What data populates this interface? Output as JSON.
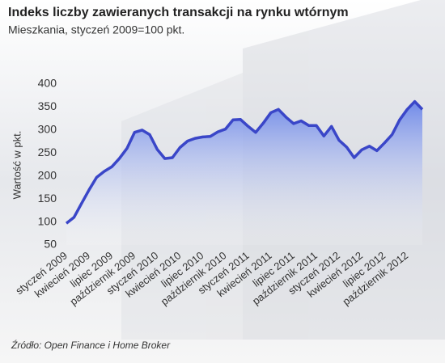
{
  "chart_data": {
    "type": "area-line",
    "title": "Indeks liczby zawieranych transakcji na rynku wtórnym",
    "subtitle": "Mieszkania, styczeń 2009=100 pkt.",
    "y_label": "Wartość w pkt.",
    "source": "Źródło: Open Finance i Home Broker",
    "categories": [
      "styczeń 2009",
      null,
      null,
      "kwiecień 2009",
      null,
      null,
      "lipiec 2009",
      null,
      null,
      "październik 2009",
      null,
      null,
      "styczeń 2010",
      null,
      null,
      "kwiecień 2010",
      null,
      null,
      "lipiec 2010",
      null,
      null,
      "październik 2010",
      null,
      null,
      "styczeń 2011",
      null,
      null,
      "kwiecień 2011",
      null,
      null,
      "lipiec 2011",
      null,
      null,
      "październik 2011",
      null,
      null,
      "styczeń 2012",
      null,
      null,
      "kwiecień 2012",
      null,
      null,
      "lipiec 2012",
      null,
      null,
      "październik 2012",
      null,
      null
    ],
    "values": [
      97,
      110,
      140,
      170,
      197,
      210,
      220,
      238,
      260,
      295,
      300,
      290,
      258,
      238,
      240,
      262,
      276,
      282,
      285,
      286,
      296,
      302,
      322,
      323,
      308,
      295,
      315,
      338,
      345,
      328,
      314,
      320,
      310,
      310,
      287,
      308,
      278,
      263,
      240,
      257,
      265,
      255,
      272,
      290,
      322,
      345,
      362,
      345
    ],
    "color": "#3a46c8",
    "ylim": [
      50,
      400
    ],
    "yticks": [
      50,
      100,
      150,
      200,
      250,
      300,
      350,
      400
    ],
    "grid": false
  }
}
